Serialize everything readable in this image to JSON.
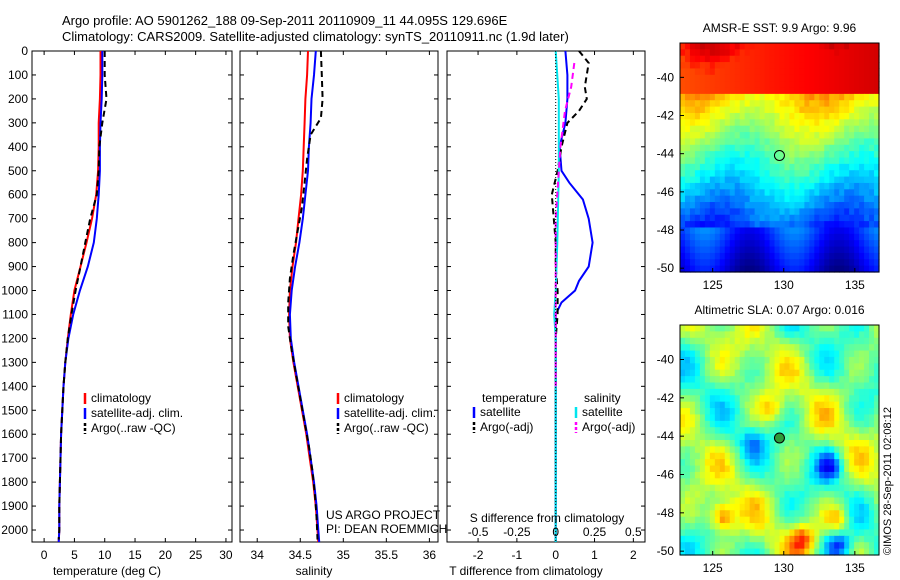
{
  "header": {
    "line1": "Argo profile: AO 5901262_188 09-Sep-2011 20110909_11 44.095S 129.696E",
    "line2": "Climatology: CARS2009. Satellite-adjusted climatology: synTS_20110911.nc (1.9d later)"
  },
  "stamp": "©IMOS 28-Sep-2011 02:08:12",
  "chart_data": [
    {
      "type": "line",
      "xlabel": "temperature (deg C)",
      "ylabel": "",
      "xlim": [
        -2,
        31
      ],
      "ylim": [
        2050,
        0
      ],
      "xticks": [
        0,
        5,
        10,
        15,
        20,
        25,
        30
      ],
      "yticks": [
        0,
        100,
        200,
        300,
        400,
        500,
        600,
        700,
        800,
        900,
        1000,
        1100,
        1200,
        1300,
        1400,
        1500,
        1600,
        1700,
        1800,
        1900,
        2000
      ],
      "legend": [
        "climatology",
        "satellite-adj. clim.",
        "Argo(..raw -QC)"
      ],
      "legend_position": "lower-center",
      "series": [
        {
          "name": "climatology",
          "color": "#ff0000",
          "dash": "",
          "points": [
            [
              9.3,
              0
            ],
            [
              9.3,
              100
            ],
            [
              9.2,
              200
            ],
            [
              9.0,
              300
            ],
            [
              9.0,
              400
            ],
            [
              8.9,
              500
            ],
            [
              8.6,
              600
            ],
            [
              7.9,
              700
            ],
            [
              7.0,
              800
            ],
            [
              6.0,
              900
            ],
            [
              5.0,
              1000
            ],
            [
              4.4,
              1100
            ],
            [
              3.9,
              1200
            ],
            [
              3.5,
              1300
            ],
            [
              3.2,
              1400
            ],
            [
              3.0,
              1500
            ],
            [
              2.8,
              1600
            ],
            [
              2.7,
              1700
            ],
            [
              2.6,
              1800
            ],
            [
              2.5,
              1900
            ],
            [
              2.5,
              2000
            ],
            [
              2.4,
              2050
            ]
          ]
        },
        {
          "name": "satellite-adj. clim.",
          "color": "#0000ff",
          "dash": "",
          "points": [
            [
              9.6,
              0
            ],
            [
              9.6,
              100
            ],
            [
              9.5,
              200
            ],
            [
              9.3,
              300
            ],
            [
              9.2,
              400
            ],
            [
              9.2,
              500
            ],
            [
              9.0,
              600
            ],
            [
              8.7,
              700
            ],
            [
              8.2,
              800
            ],
            [
              7.2,
              900
            ],
            [
              5.9,
              1000
            ],
            [
              4.8,
              1100
            ],
            [
              4.0,
              1200
            ],
            [
              3.5,
              1300
            ],
            [
              3.2,
              1400
            ],
            [
              3.0,
              1500
            ],
            [
              2.8,
              1600
            ],
            [
              2.7,
              1700
            ],
            [
              2.6,
              1800
            ],
            [
              2.5,
              1900
            ],
            [
              2.5,
              2000
            ],
            [
              2.4,
              2050
            ]
          ]
        },
        {
          "name": "Argo(..raw -QC)",
          "color": "#000000",
          "dash": "6,4",
          "points": [
            [
              10.0,
              0
            ],
            [
              10.0,
              100
            ],
            [
              10.3,
              200
            ],
            [
              9.6,
              300
            ],
            [
              9.1,
              400
            ],
            [
              9.0,
              500
            ],
            [
              8.7,
              600
            ],
            [
              7.6,
              700
            ],
            [
              6.8,
              800
            ],
            [
              6.0,
              900
            ],
            [
              5.2,
              1000
            ],
            [
              4.5,
              1100
            ],
            [
              3.9,
              1200
            ],
            [
              3.5,
              1300
            ],
            [
              3.2,
              1400
            ],
            [
              3.0,
              1500
            ],
            [
              2.8,
              1600
            ],
            [
              2.7,
              1700
            ],
            [
              2.6,
              1800
            ],
            [
              2.5,
              1900
            ],
            [
              2.5,
              2000
            ],
            [
              2.4,
              2040
            ]
          ]
        }
      ]
    },
    {
      "type": "line",
      "xlabel": "salinity",
      "ylabel": "",
      "xlim": [
        33.8,
        36.1
      ],
      "ylim": [
        2050,
        0
      ],
      "xticks": [
        34,
        34.5,
        35,
        35.5,
        36
      ],
      "yticks": [],
      "legend": [
        "climatology",
        "satellite-adj. clim.",
        "Argo(..raw -QC)"
      ],
      "legend_position": "lower-center",
      "annotations": [
        "US ARGO PROJECT",
        "PI: DEAN ROEMMICH"
      ],
      "series": [
        {
          "name": "climatology",
          "color": "#ff0000",
          "dash": "",
          "points": [
            [
              34.59,
              0
            ],
            [
              34.58,
              100
            ],
            [
              34.56,
              200
            ],
            [
              34.55,
              300
            ],
            [
              34.54,
              400
            ],
            [
              34.53,
              500
            ],
            [
              34.51,
              600
            ],
            [
              34.48,
              700
            ],
            [
              34.45,
              800
            ],
            [
              34.41,
              900
            ],
            [
              34.38,
              1000
            ],
            [
              34.37,
              1100
            ],
            [
              34.38,
              1200
            ],
            [
              34.42,
              1300
            ],
            [
              34.47,
              1400
            ],
            [
              34.52,
              1500
            ],
            [
              34.57,
              1600
            ],
            [
              34.61,
              1700
            ],
            [
              34.65,
              1800
            ],
            [
              34.68,
              1900
            ],
            [
              34.7,
              2000
            ],
            [
              34.71,
              2050
            ]
          ]
        },
        {
          "name": "satellite-adj. clim.",
          "color": "#0000ff",
          "dash": "",
          "points": [
            [
              34.68,
              0
            ],
            [
              34.66,
              100
            ],
            [
              34.63,
              200
            ],
            [
              34.62,
              300
            ],
            [
              34.6,
              400
            ],
            [
              34.59,
              500
            ],
            [
              34.56,
              600
            ],
            [
              34.53,
              700
            ],
            [
              34.49,
              800
            ],
            [
              34.44,
              900
            ],
            [
              34.4,
              1000
            ],
            [
              34.38,
              1100
            ],
            [
              34.39,
              1200
            ],
            [
              34.43,
              1300
            ],
            [
              34.48,
              1400
            ],
            [
              34.53,
              1500
            ],
            [
              34.58,
              1600
            ],
            [
              34.62,
              1700
            ],
            [
              34.66,
              1800
            ],
            [
              34.69,
              1900
            ],
            [
              34.71,
              2000
            ],
            [
              34.72,
              2050
            ]
          ]
        },
        {
          "name": "Argo(..raw -QC)",
          "color": "#000000",
          "dash": "6,4",
          "points": [
            [
              34.74,
              0
            ],
            [
              34.75,
              100
            ],
            [
              34.76,
              200
            ],
            [
              34.74,
              280
            ],
            [
              34.62,
              350
            ],
            [
              34.58,
              450
            ],
            [
              34.55,
              550
            ],
            [
              34.52,
              650
            ],
            [
              34.47,
              750
            ],
            [
              34.42,
              850
            ],
            [
              34.38,
              950
            ],
            [
              34.36,
              1050
            ],
            [
              34.36,
              1150
            ],
            [
              34.4,
              1250
            ],
            [
              34.45,
              1350
            ],
            [
              34.5,
              1450
            ],
            [
              34.55,
              1550
            ],
            [
              34.6,
              1650
            ],
            [
              34.64,
              1750
            ],
            [
              34.67,
              1850
            ],
            [
              34.69,
              1950
            ],
            [
              34.7,
              2040
            ]
          ]
        }
      ]
    },
    {
      "type": "line",
      "xlabel": "T difference from climatology",
      "xlabel2": "S difference from climatology",
      "ylabel": "",
      "xlim": [
        -2.8,
        2.3
      ],
      "ylim": [
        2050,
        0
      ],
      "xticks": [
        -2,
        -1,
        0,
        1,
        2
      ],
      "xticklabels": [
        "-2",
        "-1",
        "0",
        "1",
        "2"
      ],
      "x2lim": [
        -0.7,
        0.575
      ],
      "x2ticks": [
        -0.5,
        -0.25,
        0,
        0.25,
        0.5
      ],
      "x2ticklabels": [
        "-0.5",
        "-0.25",
        "0",
        "0.25",
        "0.5"
      ],
      "yticks": [],
      "legend_groups": [
        {
          "title": "temperature",
          "entries": [
            "satellite",
            "Argo(-adj)"
          ]
        },
        {
          "title": "salinity",
          "entries": [
            "satellite",
            "Argo(-adj)"
          ]
        }
      ],
      "series": [
        {
          "name": "temperature satellite",
          "color": "#0000ff",
          "dash": "",
          "axis": "T",
          "points": [
            [
              0.25,
              0
            ],
            [
              0.3,
              100
            ],
            [
              0.3,
              200
            ],
            [
              0.25,
              300
            ],
            [
              0.1,
              400
            ],
            [
              0.15,
              500
            ],
            [
              0.35,
              550
            ],
            [
              0.7,
              620
            ],
            [
              0.85,
              700
            ],
            [
              0.95,
              800
            ],
            [
              0.85,
              900
            ],
            [
              0.6,
              960
            ],
            [
              0.5,
              1000
            ],
            [
              0.15,
              1050
            ],
            [
              0.0,
              1100
            ],
            [
              0.0,
              1200
            ],
            [
              0.0,
              1400
            ],
            [
              0.0,
              1800
            ],
            [
              0.0,
              2050
            ]
          ]
        },
        {
          "name": "temperature Argo(-adj)",
          "color": "#000000",
          "dash": "6,4",
          "axis": "T",
          "points": [
            [
              0.6,
              0
            ],
            [
              0.85,
              50
            ],
            [
              0.75,
              150
            ],
            [
              0.8,
              200
            ],
            [
              0.6,
              250
            ],
            [
              0.3,
              300
            ],
            [
              0.15,
              400
            ],
            [
              0.05,
              500
            ],
            [
              -0.1,
              600
            ],
            [
              -0.05,
              700
            ],
            [
              0.0,
              800
            ],
            [
              0.0,
              900
            ],
            [
              0.05,
              1000
            ],
            [
              0.05,
              1100
            ],
            [
              0.0,
              1200
            ],
            [
              0.0,
              1400
            ],
            [
              0.0,
              2050
            ]
          ]
        },
        {
          "name": "salinity satellite",
          "color": "#00e5ee",
          "dash": "",
          "axis": "S",
          "points": [
            [
              0.0,
              0
            ],
            [
              0.02,
              200
            ],
            [
              0.02,
              500
            ],
            [
              0.01,
              800
            ],
            [
              0.0,
              1000
            ],
            [
              -0.01,
              1100
            ],
            [
              0.0,
              1200
            ],
            [
              0.0,
              1500
            ],
            [
              0.0,
              2050
            ]
          ]
        },
        {
          "name": "salinity Argo(-adj)",
          "color": "#ff00ff",
          "dash": "6,4",
          "axis": "S",
          "points": [
            [
              0.12,
              50
            ],
            [
              0.1,
              150
            ],
            [
              0.06,
              250
            ],
            [
              0.03,
              400
            ],
            [
              0.02,
              500
            ],
            [
              0.0,
              700
            ],
            [
              0.0,
              900
            ],
            [
              0.0,
              1100
            ],
            [
              0.0,
              1200
            ],
            [
              0.0,
              1400
            ]
          ]
        }
      ]
    },
    {
      "type": "heatmap",
      "title": "AMSR-E SST: 9.9 Argo: 9.96",
      "xticks": [
        125,
        130,
        135
      ],
      "yticks": [
        -40,
        -42,
        -44,
        -46,
        -48,
        -50
      ],
      "xlim": [
        122.7,
        136.7
      ],
      "ylim": [
        -50.2,
        -38.2
      ],
      "marker": {
        "lon": 129.696,
        "lat": -44.095
      },
      "colormap": "jet"
    },
    {
      "type": "heatmap",
      "title": "Altimetric SLA: 0.07 Argo: 0.016",
      "xticks": [
        125,
        130,
        135
      ],
      "yticks": [
        -40,
        -42,
        -44,
        -46,
        -48,
        -50
      ],
      "xlim": [
        122.7,
        136.7
      ],
      "ylim": [
        -50.2,
        -38.2
      ],
      "marker": {
        "lon": 129.696,
        "lat": -44.095
      },
      "colormap": "jet"
    }
  ]
}
